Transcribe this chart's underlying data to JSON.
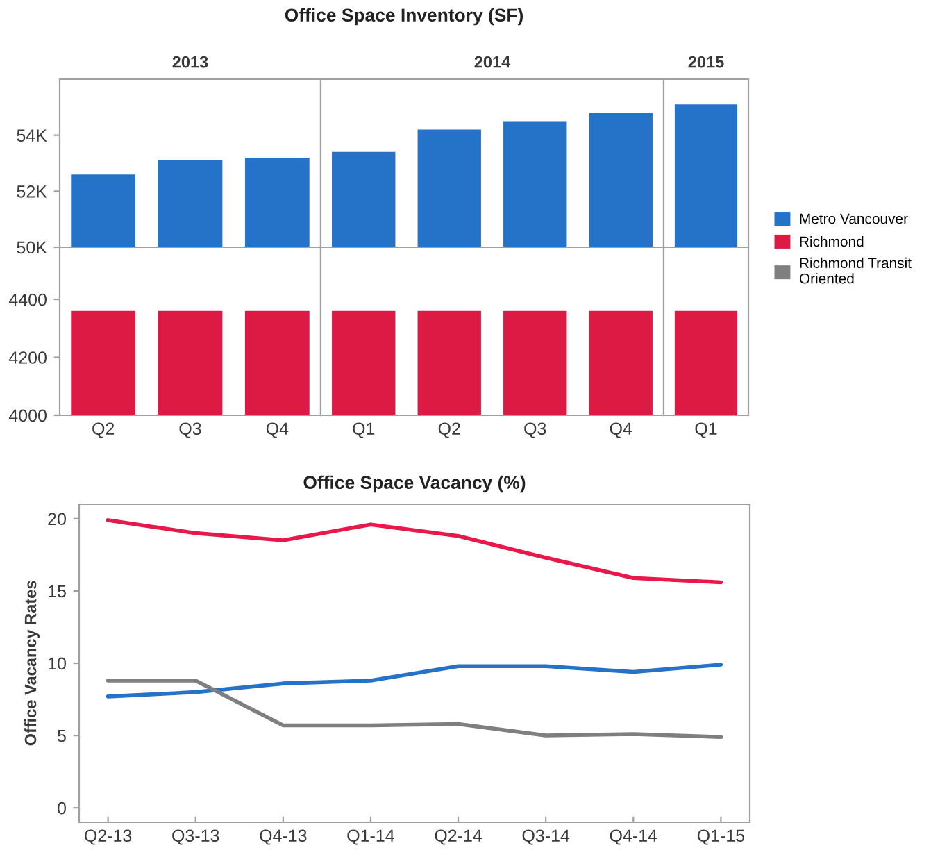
{
  "chart_data": [
    {
      "type": "bar",
      "subtitle": "2013",
      "annotations": [
        "Office Space Inventory (SF)"
      ],
      "categories": [
        "Q2",
        "Q3",
        "Q4"
      ],
      "series": [
        {
          "name": "Metro Vancouver",
          "color": "#2473c9",
          "values": [
            52600,
            53100,
            53200
          ]
        }
      ],
      "ylim": [
        50000,
        56000
      ],
      "yticks": [
        {
          "value": 50000,
          "label": "50K"
        },
        {
          "value": 52000,
          "label": "52K"
        },
        {
          "value": 54000,
          "label": "54K"
        }
      ],
      "tick_labels": "y"
    },
    {
      "type": "bar",
      "subtitle": "2014",
      "categories": [
        "Q1",
        "Q2",
        "Q3",
        "Q4"
      ],
      "series": [
        {
          "name": "Metro Vancouver",
          "color": "#2473c9",
          "values": [
            53400,
            54200,
            54500,
            54800
          ]
        }
      ],
      "ylim": [
        50000,
        56000
      ],
      "tick_labels": false
    },
    {
      "type": "bar",
      "subtitle": "2015",
      "categories": [
        "Q1"
      ],
      "series": [
        {
          "name": "Metro Vancouver",
          "color": "#2473c9",
          "values": [
            55100
          ]
        }
      ],
      "ylim": [
        50000,
        56000
      ],
      "tick_labels": false
    },
    {
      "type": "bar",
      "categories": [
        "Q2",
        "Q3",
        "Q4"
      ],
      "series": [
        {
          "name": "Richmond",
          "color": "#dd1a44",
          "values": [
            4360,
            4360,
            4360
          ]
        }
      ],
      "ylim": [
        4000,
        4580
      ],
      "yticks": [
        4000,
        4200,
        4400
      ]
    },
    {
      "type": "bar",
      "categories": [
        "Q1",
        "Q2",
        "Q3",
        "Q4"
      ],
      "series": [
        {
          "name": "Richmond",
          "color": "#dd1a44",
          "values": [
            4360,
            4360,
            4360,
            4360
          ]
        }
      ],
      "ylim": [
        4000,
        4580
      ],
      "tick_labels": "x"
    },
    {
      "type": "bar",
      "categories": [
        "Q1"
      ],
      "series": [
        {
          "name": "Richmond",
          "color": "#dd1a44",
          "values": [
            4360
          ]
        }
      ],
      "ylim": [
        4000,
        4580
      ],
      "tick_labels": "x"
    },
    {
      "type": "line",
      "title": "Office Space Vacancy (%)",
      "ylabel": "Office Vacancy Rates",
      "categories": [
        "Q2-13",
        "Q3-13",
        "Q4-13",
        "Q1-14",
        "Q2-14",
        "Q3-14",
        "Q4-14",
        "Q1-15"
      ],
      "series": [
        {
          "name": "Metro Vancouver",
          "color": "#2473c9",
          "values": [
            7.7,
            8.0,
            8.6,
            8.8,
            9.8,
            9.8,
            9.4,
            9.9
          ]
        },
        {
          "name": "Richmond",
          "color": "#e8194a",
          "values": [
            19.9,
            19.0,
            18.5,
            19.6,
            18.8,
            17.3,
            15.9,
            15.6
          ]
        },
        {
          "name": "Richmond Transit\nOriented",
          "color": "#7f7f7f",
          "values": [
            8.8,
            8.8,
            5.7,
            5.7,
            5.8,
            5.0,
            5.1,
            4.9
          ]
        }
      ],
      "ylim": [
        -1,
        21
      ],
      "yticks": [
        0,
        5,
        10,
        15,
        20
      ],
      "legend": "top right"
    }
  ]
}
